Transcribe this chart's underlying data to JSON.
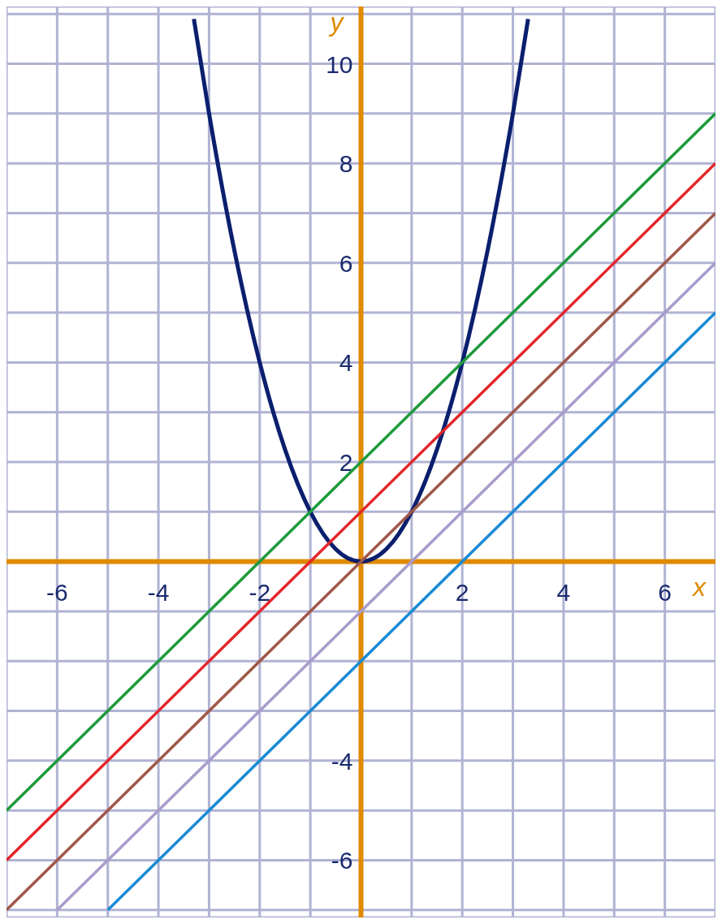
{
  "chart_data": {
    "type": "line",
    "xlabel": "x",
    "ylabel": "y",
    "xlim": [
      -7,
      7
    ],
    "ylim": [
      -7.15,
      11.15
    ],
    "xticks": [
      {
        "value": -7,
        "label": null
      },
      -6,
      {
        "value": -5,
        "label": null
      },
      -4,
      {
        "value": -3,
        "label": null
      },
      -2,
      {
        "value": -1,
        "label": null
      },
      {
        "value": 1,
        "label": null
      },
      2,
      {
        "value": 3,
        "label": null
      },
      4,
      {
        "value": 5,
        "label": null
      },
      6,
      {
        "value": 7,
        "label": null
      }
    ],
    "yticks": [
      {
        "value": -7,
        "label": null
      },
      -6,
      {
        "value": -5,
        "label": null
      },
      -4,
      {
        "value": -3,
        "label": null
      },
      {
        "value": -2,
        "label": null
      },
      {
        "value": -1,
        "label": null
      },
      {
        "value": 1,
        "label": null
      },
      2,
      {
        "value": 3,
        "label": null
      },
      4,
      {
        "value": 5,
        "label": null
      },
      6,
      {
        "value": 7,
        "label": null
      },
      8,
      {
        "value": 9,
        "label": null
      },
      10,
      {
        "value": 11,
        "label": null
      }
    ],
    "grid": true,
    "series": [
      {
        "color": "#0b1f6e",
        "x": [
          -3.3,
          -3,
          -2.5,
          -2,
          -1.5,
          -1,
          -0.5,
          0,
          0.5,
          1,
          1.5,
          2,
          2.5,
          3,
          3.3
        ],
        "values": [
          10.9,
          9,
          6.25,
          4,
          2.25,
          1,
          0.25,
          0,
          0.25,
          1,
          2.25,
          4,
          6.25,
          9,
          10.9
        ]
      },
      {
        "color": "#1e9a3c",
        "x": [
          -7,
          7
        ],
        "values": [
          -5,
          9
        ]
      },
      {
        "color": "#e3262a",
        "x": [
          -7,
          7
        ],
        "values": [
          -6,
          8
        ]
      },
      {
        "color": "#a0584a",
        "x": [
          -7,
          7
        ],
        "values": [
          -7,
          7
        ]
      },
      {
        "color": "#a89ccc",
        "x": [
          -6,
          7
        ],
        "values": [
          -7,
          6
        ]
      },
      {
        "color": "#1a8ad6",
        "x": [
          -5,
          7
        ],
        "values": [
          -7,
          5
        ]
      }
    ]
  }
}
